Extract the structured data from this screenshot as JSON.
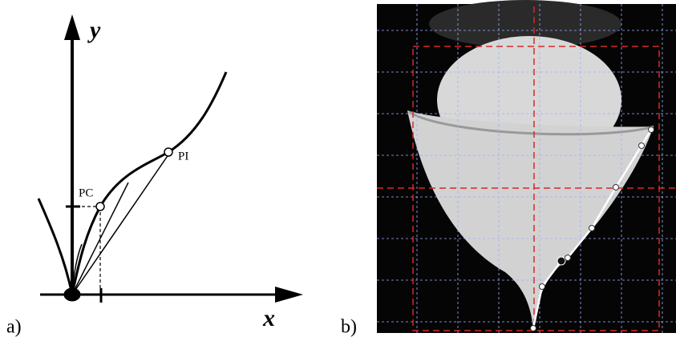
{
  "panels": [
    {
      "label": "a)",
      "y_axis": "y",
      "x_axis": "x",
      "points": [
        "PC",
        "PI"
      ]
    },
    {
      "label": "b)"
    }
  ]
}
